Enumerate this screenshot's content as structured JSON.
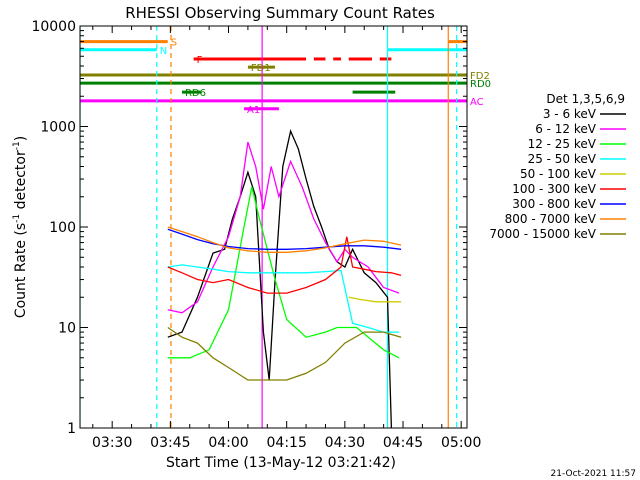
{
  "chart_data": {
    "type": "line",
    "title": "RHESSI Observing Summary Count Rates",
    "xlabel": "Start Time (13-May-12 03:21:42)",
    "ylabel_main": "Count Rate (s",
    "ylabel_sup1": "-1",
    "ylabel_mid": " detector",
    "ylabel_sup2": "-1",
    "ylabel_end": ")",
    "y_scale": "log",
    "ylim": [
      1,
      10000
    ],
    "xlim": [
      "03:21:42",
      "05:01:30"
    ],
    "x_ticks": [
      "03:30",
      "03:45",
      "04:00",
      "04:15",
      "04:30",
      "04:45",
      "05:00"
    ],
    "y_ticks": [
      {
        "value": 1,
        "label": "1"
      },
      {
        "value": 10,
        "label": "10"
      },
      {
        "value": 100,
        "label": "100"
      },
      {
        "value": 1000,
        "label": "1000"
      },
      {
        "value": 10000,
        "label": "10000"
      }
    ],
    "grid": false,
    "legend_placement": "right",
    "legend_title": "Det 1,3,5,6,9",
    "timestamp": "21-Oct-2021 11:57",
    "series": [
      {
        "name": "3 - 6 keV",
        "color": "#000000",
        "points": [
          [
            "03:44:20",
            8
          ],
          [
            "03:48:00",
            9
          ],
          [
            "03:52:00",
            20
          ],
          [
            "03:56:00",
            55
          ],
          [
            "03:59:00",
            60
          ],
          [
            "04:01:00",
            120
          ],
          [
            "04:03:00",
            200
          ],
          [
            "04:05:00",
            350
          ],
          [
            "04:07:00",
            200
          ],
          [
            "04:09:00",
            9
          ],
          [
            "04:10:30",
            3
          ],
          [
            "04:12:00",
            30
          ],
          [
            "04:14:00",
            400
          ],
          [
            "04:16:00",
            900
          ],
          [
            "04:18:00",
            600
          ],
          [
            "04:20:00",
            300
          ],
          [
            "04:22:00",
            160
          ],
          [
            "04:24:00",
            100
          ],
          [
            "04:26:00",
            60
          ],
          [
            "04:28:00",
            45
          ],
          [
            "04:30:00",
            40
          ],
          [
            "04:32:00",
            60
          ],
          [
            "04:35:00",
            35
          ],
          [
            "04:38:00",
            28
          ],
          [
            "04:41:00",
            20
          ],
          [
            "04:42:00",
            1
          ]
        ]
      },
      {
        "name": "6 - 12 keV",
        "color": "#ff00ff",
        "points": [
          [
            "03:44:20",
            15
          ],
          [
            "03:48:00",
            14
          ],
          [
            "03:52:00",
            18
          ],
          [
            "03:56:00",
            40
          ],
          [
            "04:00:00",
            80
          ],
          [
            "04:03:00",
            200
          ],
          [
            "04:05:00",
            700
          ],
          [
            "04:07:00",
            400
          ],
          [
            "04:09:00",
            150
          ],
          [
            "04:11:00",
            400
          ],
          [
            "04:13:00",
            200
          ],
          [
            "04:16:00",
            450
          ],
          [
            "04:19:00",
            250
          ],
          [
            "04:22:00",
            120
          ],
          [
            "04:25:00",
            70
          ],
          [
            "04:28:00",
            45
          ],
          [
            "04:30:00",
            60
          ],
          [
            "04:32:00",
            50
          ],
          [
            "04:36:00",
            40
          ],
          [
            "04:40:00",
            25
          ],
          [
            "04:44:00",
            22
          ]
        ]
      },
      {
        "name": "12 - 25 keV",
        "color": "#00ff00",
        "points": [
          [
            "03:44:20",
            5
          ],
          [
            "03:50:00",
            5
          ],
          [
            "03:55:00",
            6
          ],
          [
            "04:00:00",
            15
          ],
          [
            "04:04:00",
            100
          ],
          [
            "04:06:00",
            250
          ],
          [
            "04:08:00",
            120
          ],
          [
            "04:10:00",
            60
          ],
          [
            "04:12:00",
            30
          ],
          [
            "04:15:00",
            12
          ],
          [
            "04:20:00",
            8
          ],
          [
            "04:25:00",
            9
          ],
          [
            "04:28:00",
            10
          ],
          [
            "04:33:00",
            10
          ],
          [
            "04:40:00",
            6
          ],
          [
            "04:44:00",
            5
          ]
        ]
      },
      {
        "name": "25 - 50 keV",
        "color": "#00ffff",
        "points": [
          [
            "03:44:20",
            40
          ],
          [
            "03:48:00",
            42
          ],
          [
            "03:52:00",
            40
          ],
          [
            "03:56:00",
            38
          ],
          [
            "04:00:00",
            36
          ],
          [
            "04:05:00",
            35
          ],
          [
            "04:10:00",
            35
          ],
          [
            "04:15:00",
            35
          ],
          [
            "04:20:00",
            35
          ],
          [
            "04:25:00",
            36
          ],
          [
            "04:29:00",
            37
          ],
          [
            "04:32:00",
            11
          ],
          [
            "04:36:00",
            10
          ],
          [
            "04:40:00",
            9
          ],
          [
            "04:44:00",
            9
          ]
        ]
      },
      {
        "name": "50 - 100 keV",
        "color": "#cccc00",
        "points": [
          [
            "04:31:00",
            20
          ],
          [
            "04:34:00",
            19
          ],
          [
            "04:38:00",
            18
          ],
          [
            "04:42:00",
            18
          ],
          [
            "04:44:30",
            18
          ]
        ]
      },
      {
        "name": "100 - 300 keV",
        "color": "#ff0000",
        "points": [
          [
            "03:44:20",
            40
          ],
          [
            "03:48:00",
            35
          ],
          [
            "03:52:00",
            30
          ],
          [
            "03:56:00",
            28
          ],
          [
            "04:00:00",
            30
          ],
          [
            "04:05:00",
            25
          ],
          [
            "04:10:00",
            22
          ],
          [
            "04:15:00",
            22
          ],
          [
            "04:20:00",
            25
          ],
          [
            "04:25:00",
            30
          ],
          [
            "04:29:00",
            40
          ],
          [
            "04:30:30",
            80
          ],
          [
            "04:32:00",
            40
          ],
          [
            "04:35:00",
            38
          ],
          [
            "04:38:00",
            36
          ],
          [
            "04:42:00",
            35
          ],
          [
            "04:44:30",
            33
          ]
        ]
      },
      {
        "name": "300 - 800 keV",
        "color": "#0000ff",
        "points": [
          [
            "03:44:20",
            95
          ],
          [
            "03:48:00",
            85
          ],
          [
            "03:52:00",
            75
          ],
          [
            "03:56:00",
            68
          ],
          [
            "04:00:00",
            64
          ],
          [
            "04:05:00",
            61
          ],
          [
            "04:10:00",
            60
          ],
          [
            "04:15:00",
            60
          ],
          [
            "04:20:00",
            61
          ],
          [
            "04:25:00",
            63
          ],
          [
            "04:30:00",
            65
          ],
          [
            "04:35:00",
            65
          ],
          [
            "04:40:00",
            63
          ],
          [
            "04:44:30",
            60
          ]
        ]
      },
      {
        "name": "800 - 7000 keV",
        "color": "#ff8000",
        "points": [
          [
            "03:44:20",
            100
          ],
          [
            "03:48:00",
            90
          ],
          [
            "03:52:00",
            80
          ],
          [
            "03:56:00",
            70
          ],
          [
            "04:00:00",
            62
          ],
          [
            "04:05:00",
            58
          ],
          [
            "04:10:00",
            56
          ],
          [
            "04:15:00",
            56
          ],
          [
            "04:20:00",
            58
          ],
          [
            "04:25:00",
            62
          ],
          [
            "04:30:00",
            68
          ],
          [
            "04:35:00",
            74
          ],
          [
            "04:40:00",
            72
          ],
          [
            "04:44:30",
            66
          ]
        ]
      },
      {
        "name": "7000 - 15000 keV",
        "color": "#808000",
        "points": [
          [
            "03:44:20",
            10
          ],
          [
            "03:48:00",
            8
          ],
          [
            "03:52:00",
            7
          ],
          [
            "03:56:00",
            5
          ],
          [
            "04:00:00",
            4
          ],
          [
            "04:05:00",
            3
          ],
          [
            "04:10:00",
            3
          ],
          [
            "04:15:00",
            3
          ],
          [
            "04:20:00",
            3.5
          ],
          [
            "04:25:00",
            4.5
          ],
          [
            "04:30:00",
            7
          ],
          [
            "04:35:00",
            9
          ],
          [
            "04:40:00",
            9
          ],
          [
            "04:44:30",
            8
          ]
        ]
      }
    ],
    "vertical_lines": [
      {
        "time": "03:21:42",
        "color": "#00ffff",
        "style": "solid"
      },
      {
        "time": "03:41:30",
        "color": "#00ffff",
        "style": "dash"
      },
      {
        "time": "03:45:10",
        "color": "#ff8000",
        "style": "dash"
      },
      {
        "time": "04:08:40",
        "color": "#ff00ff",
        "style": "solid"
      },
      {
        "time": "04:41:00",
        "color": "#00ffff",
        "style": "solid"
      },
      {
        "time": "04:56:40",
        "color": "#ff8000",
        "style": "solid"
      },
      {
        "time": "04:58:50",
        "color": "#00ffff",
        "style": "dash"
      }
    ],
    "flag_bars": [
      {
        "label": "S",
        "color": "#ff8000",
        "y_level": 7000,
        "segments": [
          [
            "03:21:42",
            "03:44:20"
          ],
          [
            "04:56:40",
            "05:01:30"
          ]
        ],
        "style": "solid"
      },
      {
        "label": "N",
        "color": "#00ffff",
        "y_level": 5800,
        "segments": [
          [
            "03:21:42",
            "03:41:30"
          ],
          [
            "04:41:00",
            "05:01:30"
          ]
        ],
        "style": "solid"
      },
      {
        "label": "F",
        "color": "#ff0000",
        "y_level": 4700,
        "segments": [
          [
            "03:51:00",
            "04:20:00"
          ],
          [
            "04:22:00",
            "04:25:00"
          ],
          [
            "04:27:00",
            "04:29:00"
          ],
          [
            "04:31:00",
            "04:37:00"
          ],
          [
            "04:39:00",
            "04:42:00"
          ]
        ],
        "style": "dash"
      },
      {
        "label": "FD1",
        "color": "#808000",
        "y_level": 3900,
        "segments": [
          [
            "04:05:00",
            "04:12:00"
          ]
        ],
        "style": "solid"
      },
      {
        "label": "FD2",
        "color": "#808000",
        "y_level": 3250,
        "segments": [
          [
            "03:21:42",
            "05:01:30"
          ]
        ],
        "style": "solid"
      },
      {
        "label": "RD0",
        "color": "#008000",
        "y_level": 2700,
        "segments": [
          [
            "03:21:42",
            "05:01:30"
          ]
        ],
        "style": "solid"
      },
      {
        "label": "RD6",
        "color": "#008000",
        "y_level": 2200,
        "segments": [
          [
            "03:48:00",
            "03:53:00"
          ],
          [
            "04:32:00",
            "04:43:00"
          ]
        ],
        "style": "solid"
      },
      {
        "label": "A1",
        "color": "#ff00ff",
        "y_level": 1500,
        "segments": [
          [
            "04:04:00",
            "04:13:00"
          ]
        ],
        "style": "solid"
      },
      {
        "label": "AC",
        "color": "#ff00ff",
        "y_level": 1800,
        "segments": [
          [
            "03:21:42",
            "05:01:30"
          ]
        ],
        "style": "solid"
      }
    ]
  }
}
